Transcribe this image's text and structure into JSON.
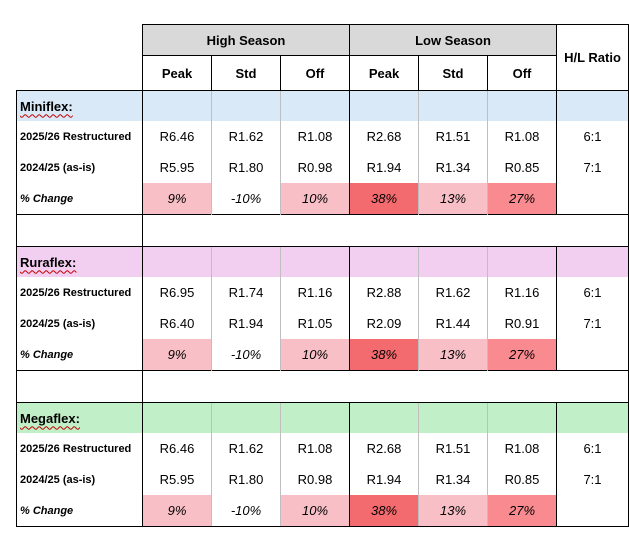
{
  "header": {
    "high_season": "High Season",
    "low_season": "Low Season",
    "ratio": "H/L Ratio",
    "cols": [
      "Peak",
      "Std",
      "Off",
      "Peak",
      "Std",
      "Off"
    ]
  },
  "colors": {
    "miniflex_band": "#dae9f8",
    "ruraflex_band": "#f2cef0",
    "megaflex_band": "#c1f0c8",
    "pct_light": "#f8c0c6",
    "pct_medium": "#f98a8f",
    "pct_strong": "#f46b6f"
  },
  "groups": [
    {
      "name": "Miniflex:",
      "rows": [
        {
          "label": "2025/26 Restructured",
          "values": [
            "R6.46",
            "R1.62",
            "R1.08",
            "R2.68",
            "R1.51",
            "R1.08"
          ],
          "ratio": "6:1"
        },
        {
          "label": "2024/25 (as-is)",
          "values": [
            "R5.95",
            "R1.80",
            "R0.98",
            "R1.94",
            "R1.34",
            "R0.85"
          ],
          "ratio": "7:1"
        }
      ],
      "change": {
        "label": "% Change",
        "values": [
          "9%",
          "-10%",
          "10%",
          "38%",
          "13%",
          "27%"
        ]
      }
    },
    {
      "name": "Ruraflex:",
      "rows": [
        {
          "label": "2025/26 Restructured",
          "values": [
            "R6.95",
            "R1.74",
            "R1.16",
            "R2.88",
            "R1.62",
            "R1.16"
          ],
          "ratio": "6:1"
        },
        {
          "label": "2024/25 (as-is)",
          "values": [
            "R6.40",
            "R1.94",
            "R1.05",
            "R2.09",
            "R1.44",
            "R0.91"
          ],
          "ratio": "7:1"
        }
      ],
      "change": {
        "label": "% Change",
        "values": [
          "9%",
          "-10%",
          "10%",
          "38%",
          "13%",
          "27%"
        ]
      }
    },
    {
      "name": "Megaflex:",
      "rows": [
        {
          "label": "2025/26 Restructured",
          "values": [
            "R6.46",
            "R1.62",
            "R1.08",
            "R2.68",
            "R1.51",
            "R1.08"
          ],
          "ratio": "6:1"
        },
        {
          "label": "2024/25 (as-is)",
          "values": [
            "R5.95",
            "R1.80",
            "R0.98",
            "R1.94",
            "R1.34",
            "R0.85"
          ],
          "ratio": "7:1"
        }
      ],
      "change": {
        "label": "% Change",
        "values": [
          "9%",
          "-10%",
          "10%",
          "38%",
          "13%",
          "27%"
        ]
      }
    }
  ]
}
